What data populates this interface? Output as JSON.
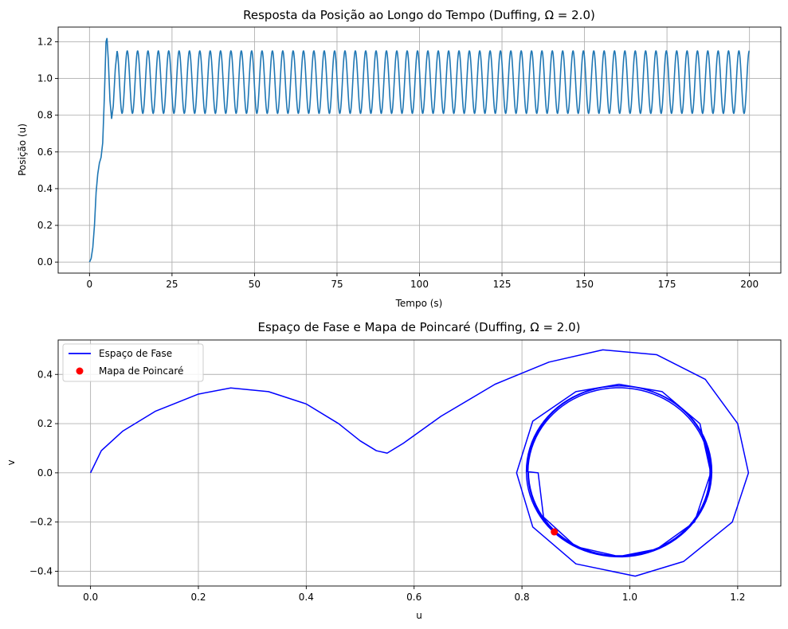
{
  "chart_data": [
    {
      "type": "line",
      "title": "Resposta da Posição ao Longo do Tempo (Duffing, Ω = 2.0)",
      "xlabel": "Tempo (s)",
      "ylabel": "Posição (u)",
      "xlim": [
        -9.5,
        209.5
      ],
      "ylim": [
        -0.06,
        1.28
      ],
      "xticks": [
        0,
        25,
        50,
        75,
        100,
        125,
        150,
        175,
        200
      ],
      "yticks": [
        0.0,
        0.2,
        0.4,
        0.6,
        0.8,
        1.0,
        1.2
      ],
      "xtick_labels": [
        "0",
        "25",
        "50",
        "75",
        "100",
        "125",
        "150",
        "175",
        "200"
      ],
      "ytick_labels": [
        "0.0",
        "0.2",
        "0.4",
        "0.6",
        "0.8",
        "1.0",
        "1.2"
      ],
      "grid": true,
      "color": "#1f77b4",
      "t_range": [
        0,
        200
      ],
      "transient_points": [
        [
          0,
          0.0
        ],
        [
          0.5,
          0.02
        ],
        [
          1,
          0.08
        ],
        [
          1.5,
          0.2
        ],
        [
          2,
          0.38
        ],
        [
          2.5,
          0.48
        ],
        [
          3,
          0.54
        ],
        [
          3.5,
          0.57
        ],
        [
          4,
          0.65
        ],
        [
          4.5,
          0.9
        ],
        [
          5,
          1.2
        ],
        [
          5.3,
          1.22
        ],
        [
          5.7,
          1.1
        ],
        [
          6.2,
          0.88
        ],
        [
          6.7,
          0.78
        ],
        [
          7.2,
          0.85
        ],
        [
          7.8,
          1.05
        ],
        [
          8.3,
          1.14
        ]
      ],
      "steady_state": {
        "center": 0.98,
        "amplitude": 0.17,
        "max": 1.15,
        "min": 0.81,
        "period": 3.1416
      }
    },
    {
      "type": "line",
      "title": "Espaço de Fase e Mapa de Poincaré (Duffing, Ω = 2.0)",
      "xlabel": "u",
      "ylabel": "v",
      "xlim": [
        -0.06,
        1.28
      ],
      "ylim": [
        -0.46,
        0.54
      ],
      "xticks": [
        0.0,
        0.2,
        0.4,
        0.6,
        0.8,
        1.0,
        1.2
      ],
      "yticks": [
        -0.4,
        -0.2,
        0.0,
        0.2,
        0.4
      ],
      "xtick_labels": [
        "0.0",
        "0.2",
        "0.4",
        "0.6",
        "0.8",
        "1.0",
        "1.2"
      ],
      "ytick_labels": [
        "−0.4",
        "−0.2",
        "0.0",
        "0.2",
        "0.4"
      ],
      "grid": true,
      "legend_position": "top-left",
      "series": [
        {
          "name": "Espaço de Fase",
          "color": "#0000ff",
          "transient_points": [
            [
              0.0,
              0.0
            ],
            [
              0.02,
              0.09
            ],
            [
              0.06,
              0.17
            ],
            [
              0.12,
              0.25
            ],
            [
              0.2,
              0.32
            ],
            [
              0.26,
              0.345
            ],
            [
              0.33,
              0.33
            ],
            [
              0.4,
              0.28
            ],
            [
              0.46,
              0.2
            ],
            [
              0.5,
              0.13
            ],
            [
              0.53,
              0.09
            ],
            [
              0.55,
              0.08
            ],
            [
              0.58,
              0.12
            ],
            [
              0.65,
              0.23
            ],
            [
              0.75,
              0.36
            ],
            [
              0.85,
              0.45
            ],
            [
              0.95,
              0.5
            ],
            [
              1.05,
              0.48
            ],
            [
              1.14,
              0.38
            ],
            [
              1.2,
              0.2
            ],
            [
              1.22,
              0.0
            ],
            [
              1.19,
              -0.2
            ],
            [
              1.1,
              -0.36
            ],
            [
              1.01,
              -0.42
            ],
            [
              0.9,
              -0.37
            ],
            [
              0.82,
              -0.22
            ],
            [
              0.79,
              0.0
            ],
            [
              0.82,
              0.21
            ],
            [
              0.9,
              0.33
            ],
            [
              0.98,
              0.36
            ],
            [
              1.06,
              0.33
            ],
            [
              1.13,
              0.2
            ],
            [
              1.15,
              0.0
            ],
            [
              1.12,
              -0.2
            ],
            [
              1.05,
              -0.31
            ],
            [
              0.98,
              -0.34
            ],
            [
              0.9,
              -0.3
            ],
            [
              0.84,
              -0.18
            ],
            [
              0.83,
              0.0
            ]
          ],
          "attractor": {
            "u_min": 0.81,
            "u_max": 1.15,
            "v_max": 0.35,
            "v_min": -0.34
          }
        },
        {
          "name": "Mapa de Poincaré",
          "color": "#ff0000",
          "type": "scatter",
          "points": [
            [
              0.86,
              -0.24
            ]
          ]
        }
      ]
    }
  ]
}
